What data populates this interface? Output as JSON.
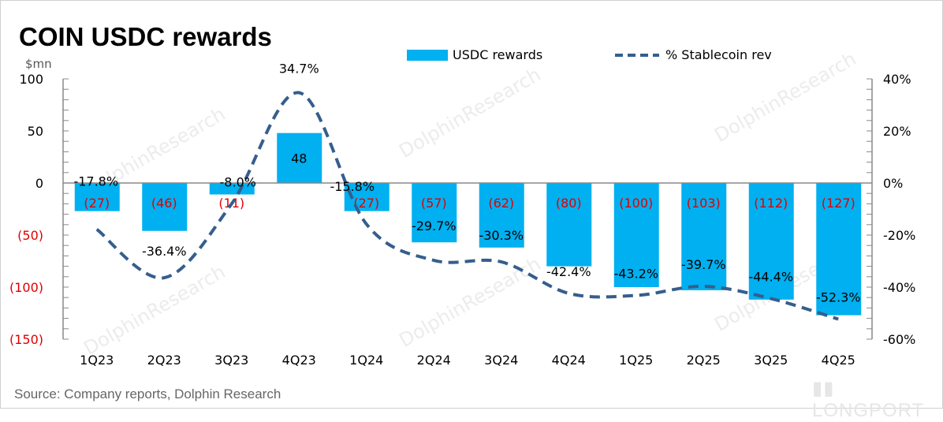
{
  "title": "COIN USDC rewards",
  "unit": "$mn",
  "source": "Source:  Company reports, Dolphin Research",
  "brand": "LONGPORT",
  "watermark": "DolphinResearch",
  "colors": {
    "bar": "#00B0F0",
    "line": "#355E8D",
    "negative_label": "#E00000",
    "axis": "#888888"
  },
  "chart_data": {
    "type": "bar+line",
    "categories": [
      "1Q23",
      "2Q23",
      "3Q23",
      "4Q23",
      "1Q24",
      "2Q24",
      "3Q24",
      "4Q24",
      "1Q25",
      "2Q25",
      "3Q25",
      "4Q25"
    ],
    "series": [
      {
        "name": "USDC rewards",
        "type": "bar",
        "axis": "left",
        "values": [
          -27,
          -46,
          -11,
          48,
          -27,
          -57,
          -62,
          -80,
          -100,
          -103,
          -112,
          -127
        ],
        "labels": [
          "(27)",
          "(46)",
          "(11)",
          "48",
          "(27)",
          "(57)",
          "(62)",
          "(80)",
          "(100)",
          "(103)",
          "(112)",
          "(127)"
        ]
      },
      {
        "name": "% Stablecoin rev",
        "type": "line",
        "style": "dashed",
        "smooth": true,
        "axis": "right",
        "values": [
          -17.8,
          -36.4,
          -8.0,
          34.7,
          -15.8,
          -29.7,
          -30.3,
          -42.4,
          -43.2,
          -39.7,
          -44.4,
          -52.3
        ],
        "labels": [
          "-17.8%",
          "-36.4%",
          "-8.0%",
          "34.7%",
          "-15.8%",
          "-29.7%",
          "-30.3%",
          "-42.4%",
          "-43.2%",
          "-39.7%",
          "-44.4%",
          "-52.3%"
        ]
      }
    ],
    "y_left": {
      "range": [
        -150,
        100
      ],
      "ticks": [
        100,
        50,
        0,
        -50,
        -100,
        -150
      ],
      "tick_labels": [
        "100",
        "50",
        "0",
        "(50)",
        "(100)",
        "(150)"
      ]
    },
    "y_right": {
      "range": [
        -60,
        40
      ],
      "ticks": [
        40,
        20,
        0,
        -20,
        -40,
        -60
      ],
      "tick_labels": [
        "40%",
        "20%",
        "0%",
        "-20%",
        "-40%",
        "-60%"
      ]
    },
    "legend": {
      "placement": "top",
      "entries": [
        "USDC rewards",
        "% Stablecoin rev"
      ]
    },
    "grid": false
  }
}
